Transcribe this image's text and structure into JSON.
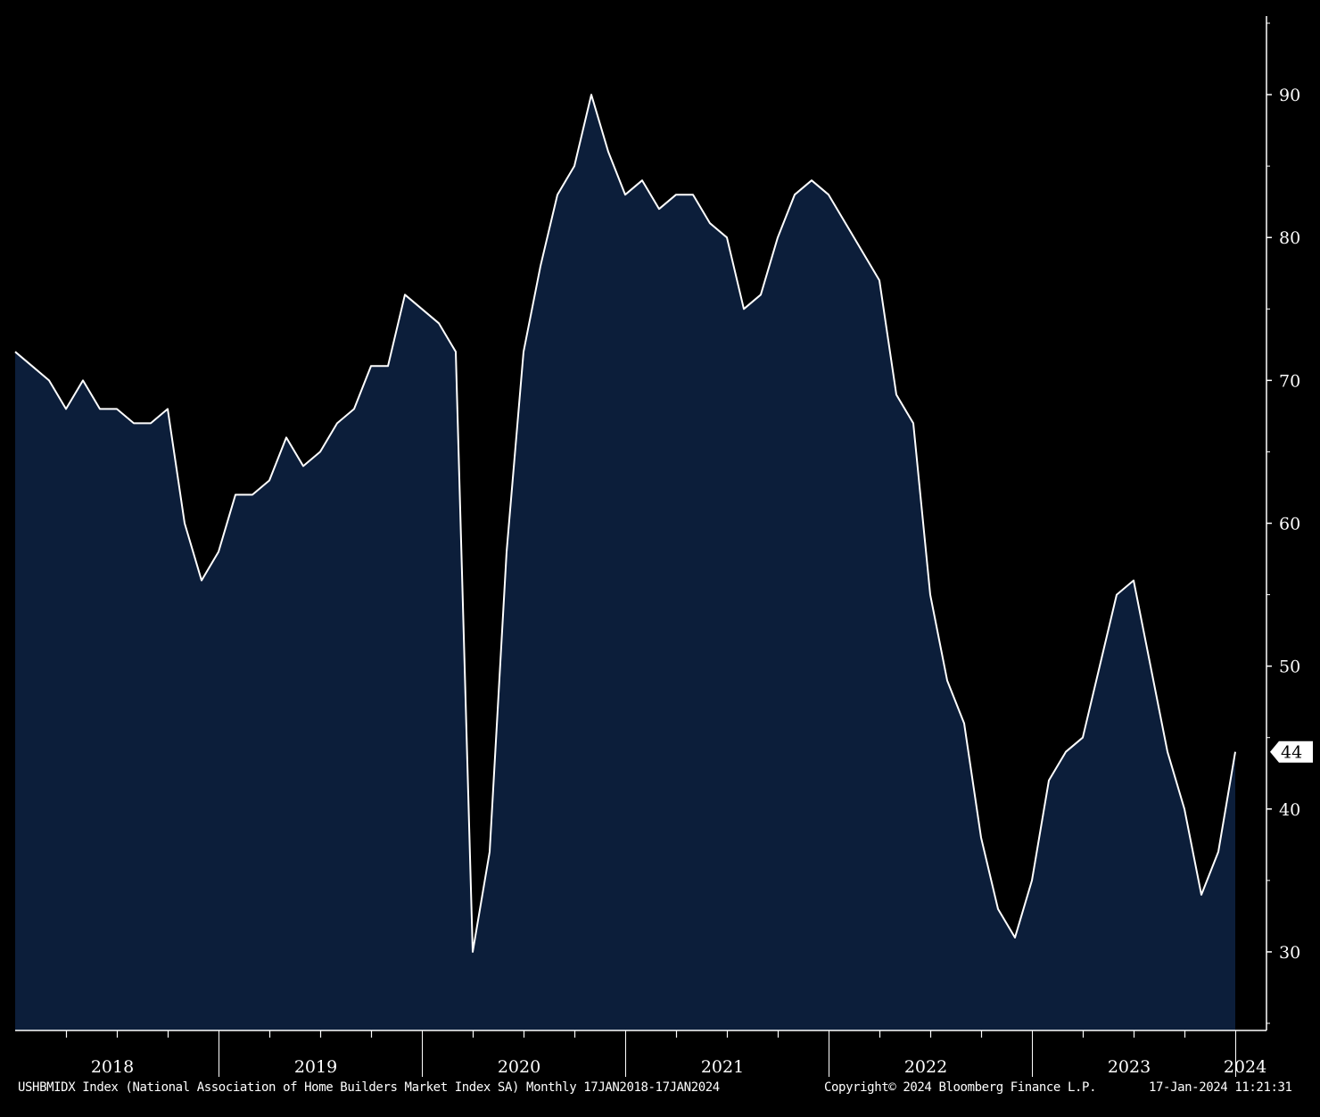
{
  "chart_data": {
    "type": "area",
    "x_start": "2018-01",
    "frequency": "monthly",
    "values": [
      72,
      71,
      70,
      68,
      70,
      68,
      68,
      67,
      67,
      68,
      60,
      56,
      58,
      62,
      62,
      63,
      66,
      64,
      65,
      67,
      68,
      71,
      71,
      76,
      75,
      74,
      72,
      30,
      37,
      58,
      72,
      78,
      83,
      85,
      90,
      86,
      83,
      84,
      82,
      83,
      83,
      81,
      80,
      75,
      76,
      80,
      83,
      84,
      83,
      81,
      79,
      77,
      69,
      67,
      55,
      49,
      46,
      38,
      33,
      31,
      35,
      42,
      44,
      45,
      50,
      55,
      56,
      50,
      44,
      40,
      34,
      37,
      44
    ],
    "ylim": [
      24.5,
      95.5
    ],
    "yticks": [
      30,
      40,
      50,
      60,
      70,
      80,
      90
    ],
    "x_labels": [
      "2018",
      "2019",
      "2020",
      "2021",
      "2022",
      "2023",
      "2024"
    ],
    "last_value_label": "44",
    "grid": false,
    "colors": {
      "background": "#000000",
      "fill": "#0c1e3a",
      "line": "#ffffff",
      "axis": "#ffffff"
    }
  },
  "footer": {
    "description": "USHBMIDX Index (National Association of Home Builders Market Index SA)  Monthly 17JAN2018-17JAN2024",
    "copyright": "Copyright© 2024 Bloomberg Finance L.P.",
    "timestamp": "17-Jan-2024 11:21:31"
  }
}
